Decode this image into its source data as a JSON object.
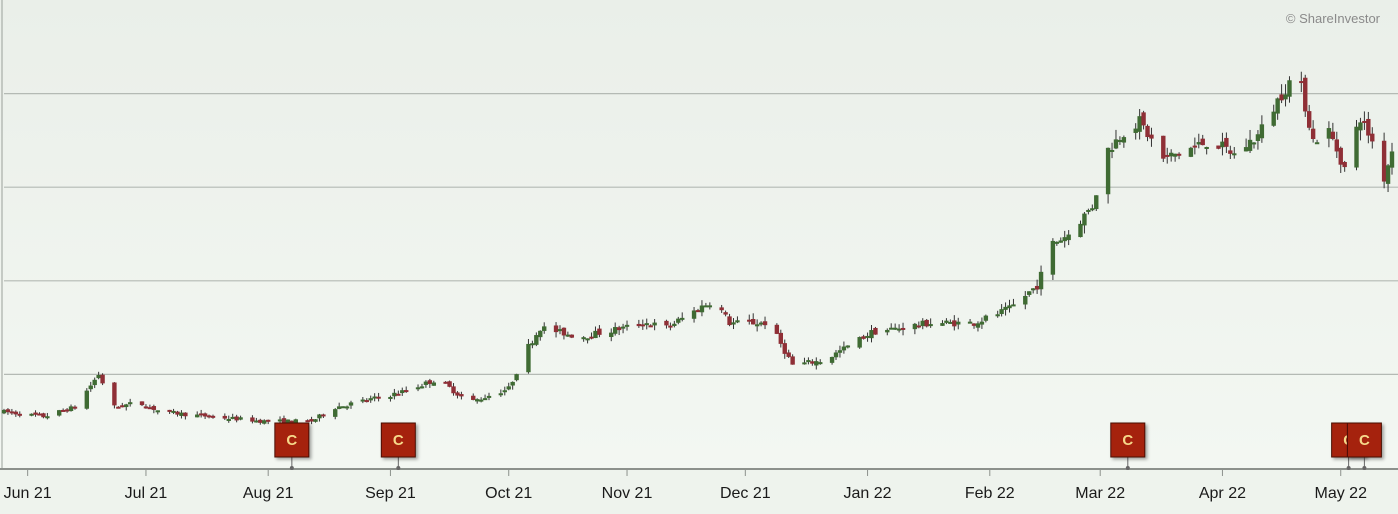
{
  "copyright": "© ShareInvestor",
  "colors": {
    "up": "#3f6b33",
    "down": "#8f2f36",
    "wick": "#333333",
    "grid": "#b4bab4",
    "marker": "#a5200f",
    "marker_text": "#f6d98a"
  },
  "chart_data": {
    "type": "candlestick",
    "title": "",
    "xlabel": "",
    "ylabel": "",
    "ylim": [
      0,
      5
    ],
    "grid": "horizontal",
    "y_ticks": [
      1,
      2,
      3,
      4
    ],
    "x_ticks": [
      {
        "label": "Jun 21",
        "day": 6
      },
      {
        "label": "Jul 21",
        "day": 36
      },
      {
        "label": "Aug 21",
        "day": 67
      },
      {
        "label": "Sep 21",
        "day": 98
      },
      {
        "label": "Oct 21",
        "day": 128
      },
      {
        "label": "Nov 21",
        "day": 158
      },
      {
        "label": "Dec 21",
        "day": 188
      },
      {
        "label": "Jan 22",
        "day": 219
      },
      {
        "label": "Feb 22",
        "day": 250
      },
      {
        "label": "Mar 22",
        "day": 278
      },
      {
        "label": "Apr 22",
        "day": 309
      },
      {
        "label": "May 22",
        "day": 339
      }
    ],
    "trend": [
      [
        0,
        0.6
      ],
      [
        10,
        0.55
      ],
      [
        18,
        0.65
      ],
      [
        24,
        1.0
      ],
      [
        28,
        0.65
      ],
      [
        34,
        0.7
      ],
      [
        40,
        0.6
      ],
      [
        52,
        0.55
      ],
      [
        66,
        0.5
      ],
      [
        78,
        0.5
      ],
      [
        84,
        0.65
      ],
      [
        100,
        0.8
      ],
      [
        110,
        0.95
      ],
      [
        118,
        0.7
      ],
      [
        128,
        0.85
      ],
      [
        133,
        1.3
      ],
      [
        136,
        1.5
      ],
      [
        146,
        1.4
      ],
      [
        163,
        1.55
      ],
      [
        168,
        1.5
      ],
      [
        180,
        1.8
      ],
      [
        184,
        1.55
      ],
      [
        194,
        1.55
      ],
      [
        200,
        1.1
      ],
      [
        208,
        1.15
      ],
      [
        220,
        1.45
      ],
      [
        235,
        1.55
      ],
      [
        246,
        1.55
      ],
      [
        255,
        1.7
      ],
      [
        262,
        1.95
      ],
      [
        266,
        2.4
      ],
      [
        270,
        2.5
      ],
      [
        276,
        2.8
      ],
      [
        280,
        3.4
      ],
      [
        284,
        3.6
      ],
      [
        288,
        3.7
      ],
      [
        294,
        3.3
      ],
      [
        300,
        3.4
      ],
      [
        306,
        3.5
      ],
      [
        312,
        3.35
      ],
      [
        318,
        3.55
      ],
      [
        324,
        4.0
      ],
      [
        328,
        4.25
      ],
      [
        332,
        3.5
      ],
      [
        336,
        3.6
      ],
      [
        340,
        3.2
      ],
      [
        344,
        3.75
      ],
      [
        348,
        3.4
      ],
      [
        350,
        3.1
      ],
      [
        352,
        3.4
      ]
    ],
    "events": [
      {
        "label": "C",
        "day": 73
      },
      {
        "label": "C",
        "day": 100
      },
      {
        "label": "C",
        "day": 285
      },
      {
        "label": "C",
        "day": 341
      },
      {
        "label": "C",
        "day": 345
      }
    ]
  }
}
